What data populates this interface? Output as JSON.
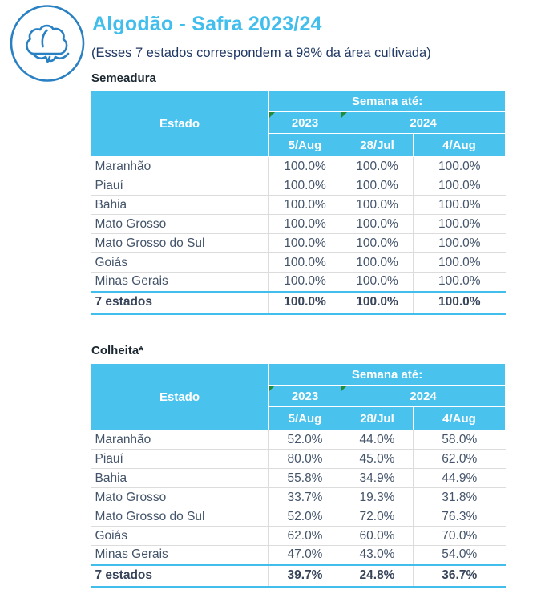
{
  "page": {
    "title": "Algodão - Safra 2023/24",
    "subtitle": "(Esses 7 estados correspondem a 98% da área cultivada)",
    "icon": "cotton-icon"
  },
  "colors": {
    "accent_blue": "#41BEEC",
    "header_blue": "#4AC2EE",
    "icon_blue": "#2980C3",
    "body_text": "#44546A",
    "subtitle_text": "#1F3864",
    "section_text": "#1B2731",
    "grid_line": "#DCDCDC",
    "marker_green": "#228C3C"
  },
  "table_header": {
    "estado": "Estado",
    "semana": "Semana até:",
    "year_2023": "2023",
    "year_2024": "2024",
    "dates": [
      "5/Aug",
      "28/Jul",
      "4/Aug"
    ]
  },
  "tables": [
    {
      "section": "Semeadura",
      "rows": [
        {
          "estado": "Maranhão",
          "values": [
            "100.0%",
            "100.0%",
            "100.0%"
          ]
        },
        {
          "estado": "Piauí",
          "values": [
            "100.0%",
            "100.0%",
            "100.0%"
          ]
        },
        {
          "estado": "Bahia",
          "values": [
            "100.0%",
            "100.0%",
            "100.0%"
          ]
        },
        {
          "estado": "Mato Grosso",
          "values": [
            "100.0%",
            "100.0%",
            "100.0%"
          ]
        },
        {
          "estado": "Mato Grosso do Sul",
          "values": [
            "100.0%",
            "100.0%",
            "100.0%"
          ]
        },
        {
          "estado": "Goiás",
          "values": [
            "100.0%",
            "100.0%",
            "100.0%"
          ]
        },
        {
          "estado": "Minas Gerais",
          "values": [
            "100.0%",
            "100.0%",
            "100.0%"
          ]
        }
      ],
      "total": {
        "estado": "7 estados",
        "values": [
          "100.0%",
          "100.0%",
          "100.0%"
        ]
      }
    },
    {
      "section": "Colheita*",
      "rows": [
        {
          "estado": "Maranhão",
          "values": [
            "52.0%",
            "44.0%",
            "58.0%"
          ]
        },
        {
          "estado": "Piauí",
          "values": [
            "80.0%",
            "45.0%",
            "62.0%"
          ]
        },
        {
          "estado": "Bahia",
          "values": [
            "55.8%",
            "34.9%",
            "44.9%"
          ]
        },
        {
          "estado": "Mato Grosso",
          "values": [
            "33.7%",
            "19.3%",
            "31.8%"
          ]
        },
        {
          "estado": "Mato Grosso do Sul",
          "values": [
            "52.0%",
            "72.0%",
            "76.3%"
          ]
        },
        {
          "estado": "Goiás",
          "values": [
            "62.0%",
            "60.0%",
            "70.0%"
          ]
        },
        {
          "estado": "Minas Gerais",
          "values": [
            "47.0%",
            "43.0%",
            "54.0%"
          ]
        }
      ],
      "total": {
        "estado": "7 estados",
        "values": [
          "39.7%",
          "24.8%",
          "36.7%"
        ]
      }
    }
  ]
}
